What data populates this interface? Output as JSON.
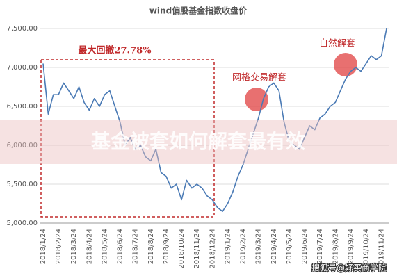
{
  "chart_data": {
    "type": "line",
    "title": "wind偏股基金指数收盘价",
    "categories": [
      "2018/1/24",
      null,
      null,
      "2018/2/24",
      null,
      null,
      "2018/3/24",
      null,
      null,
      "2018/4/24",
      null,
      null,
      "2018/5/24",
      null,
      null,
      "2018/6/24",
      null,
      null,
      "2018/7/24",
      null,
      null,
      "2018/8/24",
      null,
      null,
      "2018/9/24",
      null,
      null,
      "2018/10/24",
      null,
      null,
      "2018/11/24",
      null,
      null,
      "2018/12/24",
      null,
      null,
      "2019/1/24",
      null,
      null,
      "2019/2/24",
      null,
      null,
      "2019/3/24",
      null,
      null,
      "2019/4/24",
      null,
      null,
      "2019/5/24",
      null,
      null,
      "2019/6/24",
      null,
      null,
      "2019/7/24",
      null,
      null,
      "2019/8/24",
      null,
      null,
      "2019/9/24",
      null,
      null,
      "2019/10/24",
      null,
      null,
      "2019/11/24",
      null
    ],
    "series": [
      {
        "color": "#4a7ab5",
        "values": [
          7050,
          6400,
          6650,
          6650,
          6800,
          6700,
          6600,
          6750,
          6550,
          6450,
          6600,
          6500,
          6650,
          6700,
          6500,
          6300,
          6000,
          6100,
          5950,
          6000,
          5850,
          5800,
          5950,
          5650,
          5600,
          5450,
          5500,
          5300,
          5550,
          5450,
          5500,
          5450,
          5350,
          5300,
          5200,
          5150,
          5250,
          5400,
          5600,
          5750,
          5950,
          6150,
          6350,
          6600,
          6750,
          6800,
          6700,
          6300,
          6050,
          6000,
          5950,
          6100,
          6250,
          6200,
          6350,
          6400,
          6500,
          6550,
          6700,
          6850,
          6950,
          7000,
          6950,
          7050,
          7150,
          7100,
          7150,
          7500
        ]
      }
    ],
    "ylim": [
      5000,
      7500
    ],
    "yticks": [
      {
        "value": 5000,
        "label": "5,000.00"
      },
      {
        "value": 5500,
        "label": "5,500.00"
      },
      {
        "value": 6000,
        "label": "6,000.00"
      },
      {
        "value": 6500,
        "label": "6,500.00"
      },
      {
        "value": 7000,
        "label": "7,000.00"
      },
      {
        "value": 7500,
        "label": "7,500.00"
      }
    ],
    "grid": true,
    "annotations": [
      "最大回撤27.78%",
      "网格交易解套",
      "自然解套"
    ]
  },
  "watermark": "基金被套如何解套最有效",
  "credit": "搜狐号@好买商学院"
}
